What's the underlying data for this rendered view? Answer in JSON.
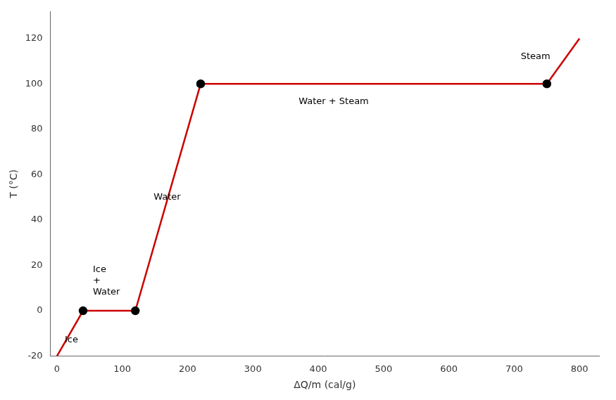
{
  "chart_data": {
    "type": "line",
    "xlabel": "ΔQ/m (cal/g)",
    "ylabel": "T (°C)",
    "x": [
      0,
      40,
      120,
      220,
      750,
      800
    ],
    "series": [
      {
        "values": [
          -20,
          0,
          0,
          100,
          100,
          120
        ],
        "color": "#cc0000",
        "marker": "none"
      },
      {
        "type": "scatter",
        "x": [
          40,
          120,
          220,
          750
        ],
        "values": [
          0,
          0,
          100,
          100
        ],
        "color": "#000000",
        "marker": "circle"
      }
    ],
    "annotations": [
      {
        "text": "Ice",
        "x": 12,
        "y": -13
      },
      {
        "text": "Ice\n+\nWater",
        "x": 55,
        "y": 13
      },
      {
        "text": "Water",
        "x": 148,
        "y": 50
      },
      {
        "text": "Water + Steam",
        "x": 370,
        "y": 92
      },
      {
        "text": "Steam",
        "x": 710,
        "y": 112
      }
    ],
    "xlim": [
      -10,
      830
    ],
    "ylim": [
      -20,
      132
    ],
    "xticks": [
      0,
      100,
      200,
      300,
      400,
      500,
      600,
      700,
      800
    ],
    "yticks": [
      -20,
      0,
      20,
      40,
      60,
      80,
      100,
      120
    ],
    "grid": false
  }
}
